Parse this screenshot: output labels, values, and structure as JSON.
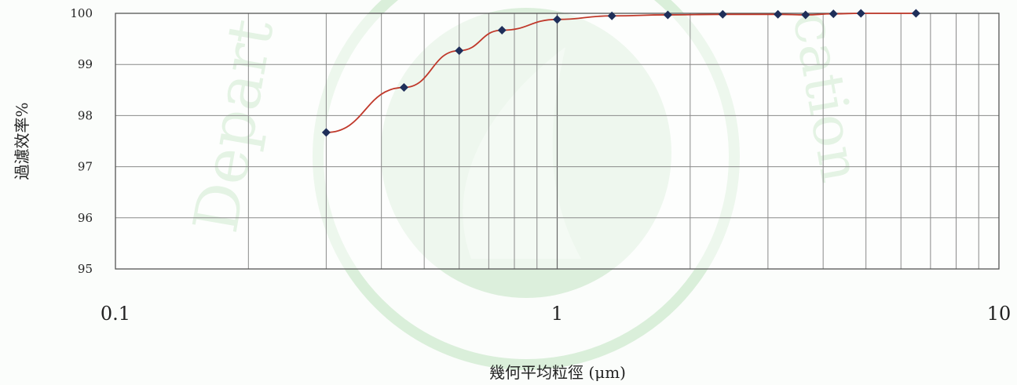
{
  "chart_data": {
    "type": "line",
    "title": "",
    "xlabel": "幾何平均粒徑 (μm)",
    "ylabel": "過濾效率%",
    "x_scale": "log",
    "xlim": [
      0.1,
      10
    ],
    "ylim": [
      95,
      100
    ],
    "y_ticks": [
      95,
      96,
      97,
      98,
      99,
      100
    ],
    "x_ticks": [
      0.1,
      1,
      10
    ],
    "grid": true,
    "legend": "none",
    "series": [
      {
        "color": "#c0392b",
        "marker_color": "#1f2f5a",
        "x": [
          0.3,
          0.45,
          0.6,
          0.75,
          1.0,
          1.33,
          1.78,
          2.37,
          3.16,
          3.65,
          4.22,
          4.87,
          6.49
        ],
        "y": [
          97.67,
          98.55,
          99.27,
          99.67,
          99.88,
          99.95,
          99.97,
          99.98,
          99.98,
          99.97,
          99.99,
          100,
          100
        ]
      }
    ]
  },
  "watermark": {
    "text_left": "Depart",
    "text_right": "cation",
    "color": "#9fd49f"
  }
}
